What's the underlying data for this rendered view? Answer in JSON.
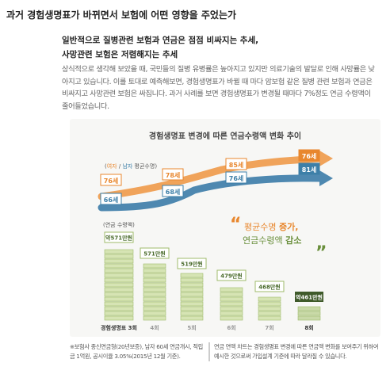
{
  "header": {
    "title": "과거 경험생명표가 바뀌면서 보험에 어떤 영향을 주었는가"
  },
  "section": {
    "subheading": [
      "일반적으로 질병관련 보험과 연금은 점점 비싸지는 추세,",
      "사망관련 보험은 저렴해지는 추세"
    ],
    "body": "상식적으로 생각해 보았을 때, 국민들의 질병 유병률은 높아지고 있지만 의료기술의 발달로 인해 사망률은 낮아지고 있습니다. 이를 토대로 예측해보면, 경험생명표가 바뀔 때 마다 암보험 같은 질병 관련 보험과 연금은 비싸지고 사망관련 보험은 싸집니다. 과거 사례를 보면 경험생명표가 변경될 때마다 7%정도 연금 수령액이 줄어들었습니다."
  },
  "infographic": {
    "title": "경험생명표 변경에 따른 연금수령액 변화 추이",
    "legend": {
      "open": "(",
      "female": "여자",
      "slash": " / ",
      "male": "남자",
      "rest": " 평균수명)"
    },
    "female_ages": [
      "76세",
      "78세",
      "85세",
      "76세"
    ],
    "male_ages": [
      "66세",
      "68세",
      "76세",
      "81세"
    ],
    "quote": {
      "line1a": "평균수명 ",
      "line1b": "증가,",
      "line2a": "연금수령액 ",
      "line2b": "감소"
    },
    "amount_label": "(연금 수령액)",
    "bars": [
      {
        "amount": "약571만원",
        "label": "경험생명표 3회"
      },
      {
        "amount": "571만원",
        "label": "4회"
      },
      {
        "amount": "519만원",
        "label": "5회"
      },
      {
        "amount": "479만원",
        "label": "6회"
      },
      {
        "amount": "468만원",
        "label": "7회"
      },
      {
        "amount": "약461만원",
        "label": "8회"
      }
    ]
  },
  "footnotes": [
    "※보험사 종신연금형(20년보증), 남자 60세 연금개시, 적립금 1억원, 공시이율 3.05%(2015년 12월 기준).",
    "연금 연액 차트는 경험생명표 변경에 따른 연금액 변화를 보여주기 위하여 예시한 것으로써 가입설계 기준에 따라 달라질 수 있습니다."
  ]
}
